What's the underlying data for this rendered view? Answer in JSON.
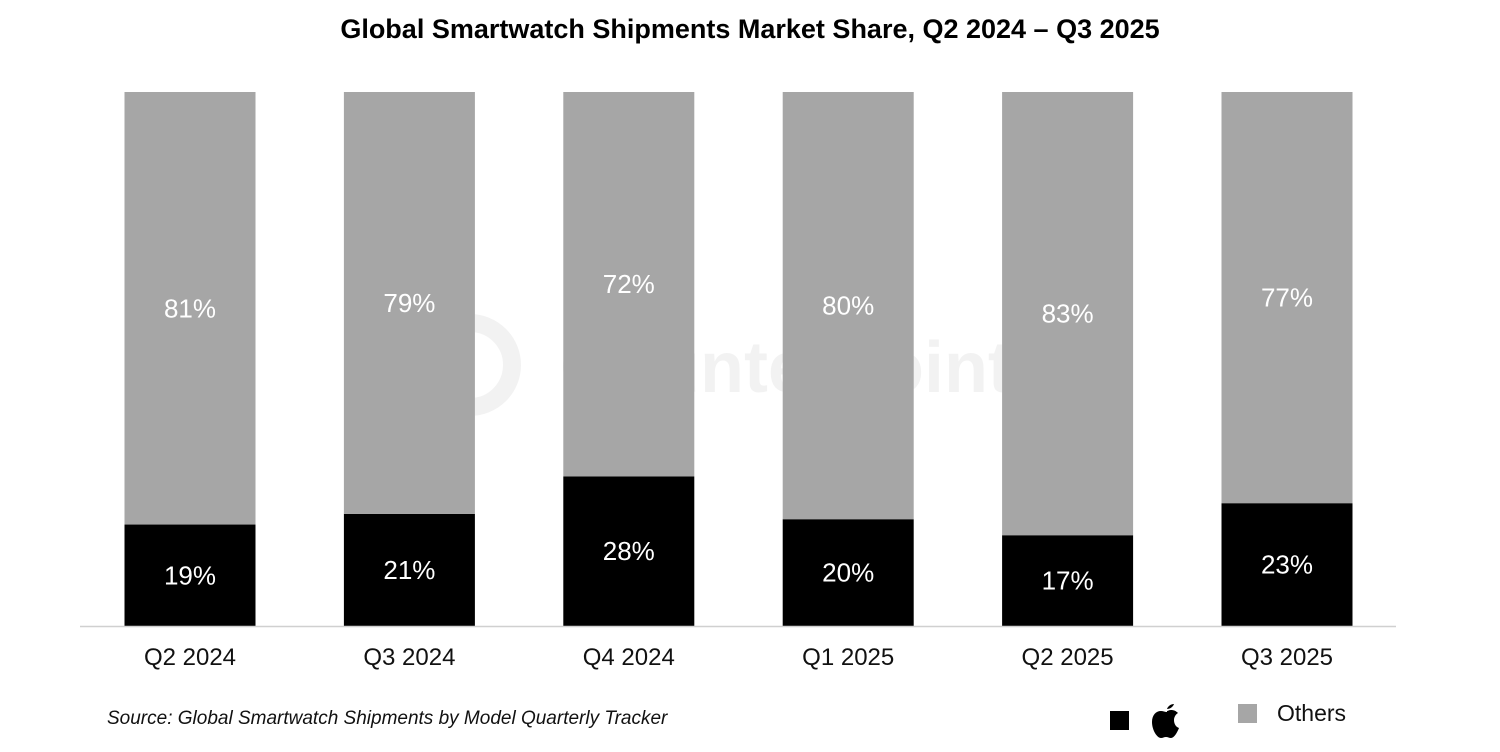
{
  "chart_data": {
    "type": "bar",
    "stacked": true,
    "title": "Global Smartwatch Shipments Market Share, Q2 2024 – Q3 2025",
    "categories": [
      "Q2 2024",
      "Q3 2024",
      "Q4 2024",
      "Q1 2025",
      "Q2 2025",
      "Q3 2025"
    ],
    "series": [
      {
        "legend_icon": "apple-logo",
        "color": "#000000",
        "values": [
          19,
          21,
          28,
          20,
          17,
          23
        ]
      },
      {
        "name": "Others",
        "color": "#a6a6a6",
        "values": [
          81,
          79,
          72,
          80,
          83,
          77
        ]
      }
    ],
    "value_suffix": "%",
    "ylim": [
      0,
      100
    ],
    "grid": false,
    "legend_placement": "bottom-right",
    "source": "Source: Global Smartwatch Shipments by Model Quarterly Tracker",
    "watermark": "Counterpoint"
  }
}
